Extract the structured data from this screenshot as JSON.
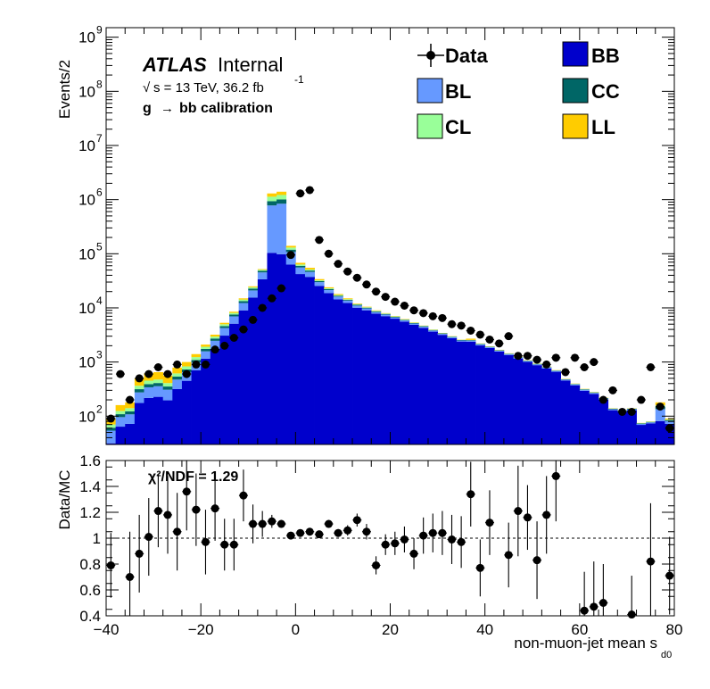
{
  "chart_data": [
    {
      "panel": "main",
      "type": "stacked-histogram",
      "ylabel": "Events/2",
      "yscale": "log",
      "ylim": [
        30,
        1500000000
      ],
      "xlim": [
        -40,
        80
      ],
      "bin_width": 2,
      "y_ticks": [
        {
          "value": 100,
          "base": "10",
          "exp": "2"
        },
        {
          "value": 1000,
          "base": "10",
          "exp": "3"
        },
        {
          "value": 10000,
          "base": "10",
          "exp": "4"
        },
        {
          "value": 100000,
          "base": "10",
          "exp": "5"
        },
        {
          "value": 1000000,
          "base": "10",
          "exp": "6"
        },
        {
          "value": 10000000,
          "base": "10",
          "exp": "7"
        },
        {
          "value": 100000000,
          "base": "10",
          "exp": "8"
        },
        {
          "value": 1000000000,
          "base": "10",
          "exp": "9"
        }
      ],
      "stack_order": [
        "BB",
        "BL",
        "CC",
        "CL",
        "LL"
      ],
      "totals": [
        90,
        160,
        180,
        500,
        620,
        650,
        560,
        790,
        1000,
        1400,
        2100,
        3200,
        5300,
        8500,
        15000,
        25000,
        52000,
        1300000,
        1400000,
        140000,
        68000,
        55000,
        34000,
        24000,
        18000,
        15000,
        12000,
        10500,
        9000,
        8000,
        7100,
        6200,
        5400,
        4700,
        4000,
        3450,
        3000,
        2600,
        2700,
        2200,
        1950,
        1680,
        1450,
        1250,
        1080,
        940,
        820,
        710,
        490,
        400,
        320,
        280,
        220,
        140,
        130,
        140,
        75,
        80,
        180,
        90
      ],
      "fractions": {
        "BB": [
          0.35,
          0.4,
          0.4,
          0.35,
          0.35,
          0.35,
          0.35,
          0.4,
          0.45,
          0.5,
          0.55,
          0.55,
          0.58,
          0.6,
          0.6,
          0.62,
          0.65,
          0.08,
          0.07,
          0.45,
          0.62,
          0.68,
          0.75,
          0.78,
          0.8,
          0.82,
          0.84,
          0.86,
          0.87,
          0.88,
          0.89,
          0.9,
          0.9,
          0.91,
          0.91,
          0.92,
          0.92,
          0.92,
          0.88,
          0.92,
          0.93,
          0.93,
          0.93,
          0.93,
          0.93,
          0.93,
          0.93,
          0.93,
          0.93,
          0.93,
          0.92,
          0.92,
          0.92,
          0.92,
          0.92,
          0.92,
          0.92,
          0.92,
          0.45,
          0.8
        ],
        "BL": [
          0.25,
          0.2,
          0.2,
          0.2,
          0.2,
          0.2,
          0.2,
          0.2,
          0.2,
          0.2,
          0.2,
          0.22,
          0.22,
          0.22,
          0.22,
          0.22,
          0.22,
          0.52,
          0.53,
          0.32,
          0.2,
          0.16,
          0.13,
          0.11,
          0.1,
          0.09,
          0.08,
          0.07,
          0.06,
          0.06,
          0.05,
          0.05,
          0.05,
          0.045,
          0.045,
          0.04,
          0.04,
          0.04,
          0.04,
          0.04,
          0.035,
          0.035,
          0.035,
          0.035,
          0.035,
          0.035,
          0.035,
          0.035,
          0.035,
          0.035,
          0.04,
          0.04,
          0.04,
          0.04,
          0.04,
          0.04,
          0.04,
          0.04,
          0.3,
          0.1
        ],
        "CC": [
          0.08,
          0.08,
          0.08,
          0.08,
          0.08,
          0.08,
          0.08,
          0.08,
          0.08,
          0.08,
          0.08,
          0.08,
          0.07,
          0.07,
          0.07,
          0.07,
          0.06,
          0.12,
          0.12,
          0.08,
          0.06,
          0.05,
          0.04,
          0.04,
          0.03,
          0.03,
          0.03,
          0.03,
          0.03,
          0.025,
          0.025,
          0.02,
          0.02,
          0.02,
          0.02,
          0.02,
          0.02,
          0.02,
          0.02,
          0.02,
          0.015,
          0.015,
          0.015,
          0.015,
          0.015,
          0.015,
          0.015,
          0.015,
          0.015,
          0.015,
          0.02,
          0.02,
          0.02,
          0.02,
          0.02,
          0.02,
          0.02,
          0.02,
          0.08,
          0.04
        ],
        "CL": [
          0.1,
          0.1,
          0.1,
          0.1,
          0.1,
          0.1,
          0.1,
          0.1,
          0.1,
          0.1,
          0.08,
          0.07,
          0.07,
          0.06,
          0.06,
          0.05,
          0.04,
          0.15,
          0.15,
          0.08,
          0.05,
          0.04,
          0.03,
          0.03,
          0.03,
          0.025,
          0.025,
          0.02,
          0.02,
          0.02,
          0.02,
          0.015,
          0.015,
          0.015,
          0.015,
          0.01,
          0.01,
          0.01,
          0.01,
          0.01,
          0.01,
          0.01,
          0.01,
          0.01,
          0.01,
          0.01,
          0.01,
          0.01,
          0.01,
          0.01,
          0.01,
          0.01,
          0.01,
          0.01,
          0.01,
          0.01,
          0.01,
          0.01,
          0.05,
          0.02
        ],
        "LL": [
          0.22,
          0.22,
          0.22,
          0.27,
          0.27,
          0.27,
          0.27,
          0.22,
          0.17,
          0.12,
          0.09,
          0.08,
          0.06,
          0.05,
          0.05,
          0.04,
          0.03,
          0.13,
          0.13,
          0.07,
          0.07,
          0.07,
          0.05,
          0.04,
          0.04,
          0.035,
          0.025,
          0.02,
          0.02,
          0.015,
          0.015,
          0.015,
          0.015,
          0.01,
          0.01,
          0.01,
          0.01,
          0.01,
          0.05,
          0.01,
          0.01,
          0.01,
          0.01,
          0.01,
          0.01,
          0.01,
          0.01,
          0.01,
          0.01,
          0.01,
          0.01,
          0.01,
          0.01,
          0.01,
          0.01,
          0.01,
          0.01,
          0.01,
          0.12,
          0.04
        ]
      },
      "series": [
        {
          "name": "Data",
          "x": [
            -39,
            -37,
            -35,
            -33,
            -31,
            -29,
            -27,
            -25,
            -23,
            -21,
            -19,
            -17,
            -15,
            -13,
            -11,
            -9,
            -7,
            -5,
            -3,
            -1,
            1,
            3,
            5,
            7,
            9,
            11,
            13,
            15,
            17,
            19,
            21,
            23,
            25,
            27,
            29,
            31,
            33,
            35,
            37,
            39,
            41,
            43,
            45,
            47,
            49,
            51,
            53,
            55,
            57,
            59,
            61,
            63,
            65,
            67,
            69,
            71,
            73,
            75,
            77,
            79
          ],
          "values": [
            90,
            600,
            200,
            500,
            600,
            800,
            600,
            900,
            600,
            900,
            900,
            1700,
            2000,
            2800,
            4000,
            6000,
            10000,
            15000,
            23000,
            95000,
            1300000,
            1500000,
            180000,
            100000,
            65000,
            47000,
            36000,
            27000,
            20000,
            16000,
            13000,
            11000,
            9000,
            8000,
            7000,
            6500,
            5000,
            4700,
            3800,
            3200,
            2600,
            2200,
            3000,
            1300,
            1300,
            1100,
            900,
            1200,
            650,
            1200,
            800,
            1000,
            200,
            300,
            120,
            120,
            200,
            800,
            150,
            60
          ]
        },
        {
          "name": "BB",
          "color": "#0000cc"
        },
        {
          "name": "BL",
          "color": "#6699ff"
        },
        {
          "name": "CC",
          "color": "#006666"
        },
        {
          "name": "CL",
          "color": "#99ff99"
        },
        {
          "name": "LL",
          "color": "#ffcc00"
        }
      ]
    },
    {
      "panel": "ratio",
      "type": "scatter",
      "ylabel": "Data/MC",
      "xlabel": "non-muon-jet mean s",
      "xlabel_sub": "d0",
      "xlim": [
        -40,
        80
      ],
      "ylim": [
        0.4,
        1.6
      ],
      "x_ticks": [
        "−40",
        "−20",
        "0",
        "20",
        "40",
        "60",
        "80"
      ],
      "y_ticks": [
        "0.4",
        "0.6",
        "0.8",
        "1",
        "1.2",
        "1.4",
        "1.6"
      ],
      "reference_line": 1,
      "annotation": "χ²/NDF = 1.29",
      "x": [
        -39,
        -35,
        -33,
        -31,
        -29,
        -27,
        -25,
        -23,
        -21,
        -19,
        -17,
        -15,
        -13,
        -11,
        -9,
        -7,
        -5,
        -3,
        -1,
        1,
        3,
        5,
        7,
        9,
        11,
        13,
        15,
        17,
        19,
        21,
        23,
        25,
        27,
        29,
        31,
        33,
        35,
        37,
        39,
        41,
        45,
        47,
        49,
        51,
        53,
        55,
        61,
        63,
        65,
        71,
        75,
        79
      ],
      "values": [
        0.79,
        0.7,
        0.88,
        1.01,
        1.21,
        1.18,
        1.05,
        1.36,
        1.22,
        0.97,
        1.23,
        0.95,
        0.95,
        1.33,
        1.11,
        1.11,
        1.13,
        1.11,
        1.02,
        1.04,
        1.05,
        1.03,
        1.11,
        1.04,
        1.06,
        1.14,
        1.05,
        0.79,
        0.95,
        0.96,
        0.99,
        0.88,
        1.02,
        1.04,
        1.04,
        0.99,
        0.97,
        1.34,
        0.77,
        1.12,
        0.87,
        1.21,
        1.16,
        0.83,
        1.18,
        1.48,
        0.44,
        0.47,
        0.5,
        0.41,
        0.82,
        0.71
      ],
      "errors": [
        0.25,
        0.35,
        0.3,
        0.3,
        0.28,
        0.3,
        0.3,
        0.3,
        0.28,
        0.25,
        0.25,
        0.2,
        0.2,
        0.2,
        0.15,
        0.1,
        0.05,
        0.03,
        0.01,
        0.01,
        0.01,
        0.02,
        0.03,
        0.03,
        0.04,
        0.05,
        0.06,
        0.07,
        0.08,
        0.09,
        0.1,
        0.12,
        0.14,
        0.15,
        0.17,
        0.19,
        0.2,
        0.25,
        0.22,
        0.25,
        0.25,
        0.35,
        0.25,
        0.3,
        0.3,
        0.35,
        0.3,
        0.35,
        0.3,
        0.3,
        0.45,
        0.3
      ]
    }
  ],
  "legend": {
    "data": "Data",
    "bb": "BB",
    "bl": "BL",
    "cc": "CC",
    "cl": "CL",
    "ll": "LL"
  },
  "header": {
    "atlas": "ATLAS",
    "internal": "Internal",
    "sqrt": "√",
    "energy": "s = 13 TeV, 36.2 fb",
    "energy_sup": "-1",
    "calib_g": "g",
    "calib_arrow": "→",
    "calib_rest": "bb calibration"
  }
}
